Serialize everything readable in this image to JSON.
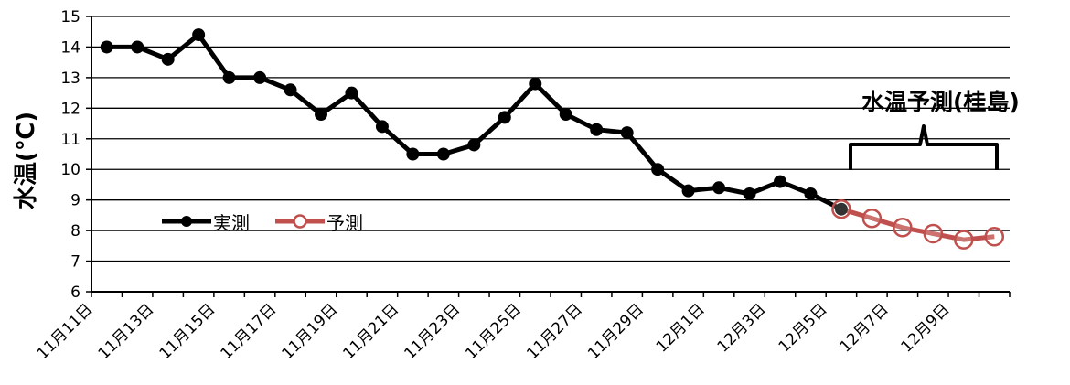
{
  "chart_data": {
    "type": "line",
    "ylabel": "水温(℃)",
    "ylim": [
      6,
      15
    ],
    "yticks": [
      6,
      7,
      8,
      9,
      10,
      11,
      12,
      13,
      14,
      15
    ],
    "xticklabels": [
      "11月11日",
      "11月13日",
      "11月15日",
      "11月17日",
      "11月19日",
      "11月21日",
      "11月23日",
      "11月25日",
      "11月27日",
      "11月29日",
      "12月1日",
      "12月3日",
      "12月5日",
      "12月7日",
      "12月9日"
    ],
    "grid": "horizontal",
    "legend_position": "bottom-left",
    "annotation": "水温予測(桂島)",
    "series": [
      {
        "name": "実測",
        "color": "#000000",
        "x": [
          "11月11日",
          "11月12日",
          "11月13日",
          "11月14日",
          "11月15日",
          "11月16日",
          "11月17日",
          "11月18日",
          "11月19日",
          "11月20日",
          "11月21日",
          "11月22日",
          "11月23日",
          "11月24日",
          "11月25日",
          "11月26日",
          "11月27日",
          "11月28日",
          "11月29日",
          "11月30日",
          "12月1日",
          "12月2日",
          "12月3日",
          "12月4日",
          "12月5日"
        ],
        "values": [
          14.0,
          14.0,
          13.6,
          14.4,
          13.0,
          13.0,
          12.6,
          11.8,
          12.5,
          11.4,
          10.5,
          10.5,
          10.8,
          11.7,
          12.8,
          11.8,
          11.3,
          11.2,
          10.0,
          9.3,
          9.4,
          9.2,
          9.6,
          9.2,
          8.7
        ]
      },
      {
        "name": "予測",
        "color": "#c0504d",
        "x": [
          "12月5日",
          "12月6日",
          "12月7日",
          "12月8日",
          "12月9日",
          "12月10日"
        ],
        "values": [
          8.7,
          8.4,
          8.1,
          7.9,
          7.7,
          7.8
        ]
      }
    ]
  }
}
